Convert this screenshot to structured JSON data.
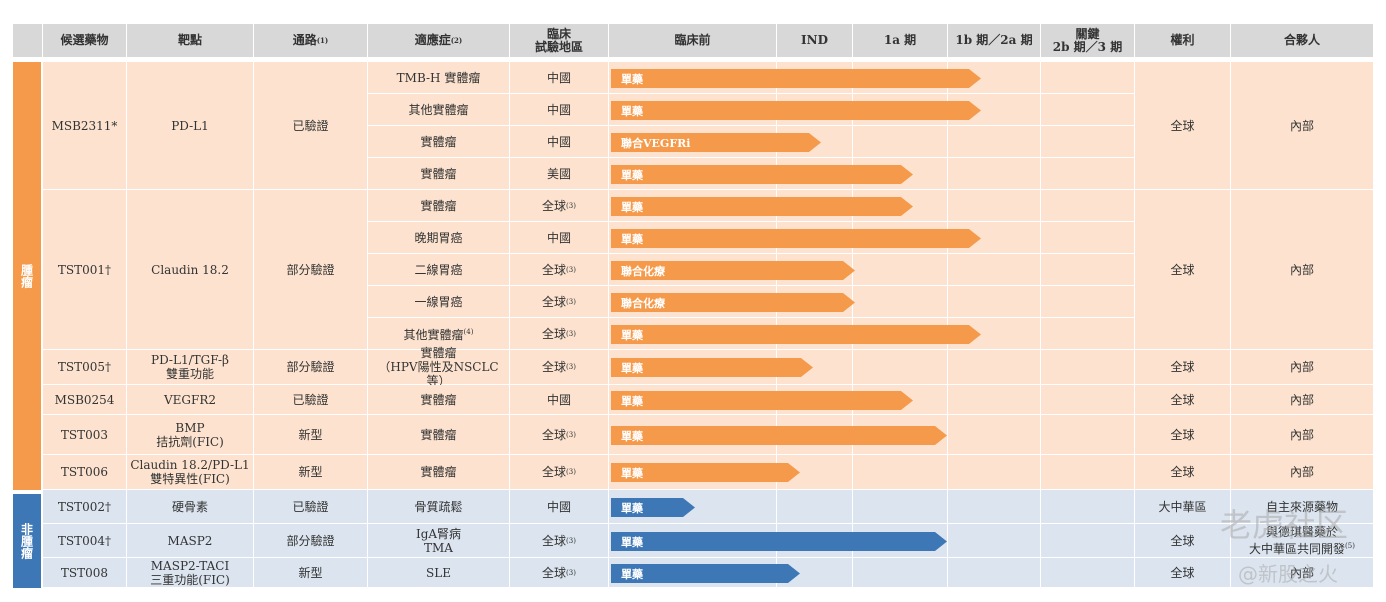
{
  "headers": {
    "candidate": "候選藥物",
    "target": "靶點",
    "pathway": "通路",
    "pathway_note": "(1)",
    "indication": "適應症",
    "indication_note": "(2)",
    "region_line1": "臨床",
    "region_line2": "試驗地區",
    "preclinical": "臨床前",
    "ind": "IND",
    "phase1a": "1a 期",
    "phase1b2a": "1b 期／2a 期",
    "pivotal_line1": "關鍵",
    "pivotal_line2": "2b 期／3 期",
    "rights": "權利",
    "partner": "合夥人"
  },
  "sidebar": {
    "oncology": "腫瘤",
    "non_oncology": "非腫瘤"
  },
  "groups": [
    {
      "candidate": "MSB2311*",
      "target": "PD-L1",
      "pathway": "已驗證",
      "rights": "全球",
      "partner": "內部"
    },
    {
      "candidate": "TST001†",
      "target": "Claudin 18.2",
      "pathway": "部分驗證",
      "rights": "全球",
      "partner": "內部"
    },
    {
      "candidate": "TST005†",
      "target_l1": "PD-L1/TGF-β",
      "target_l2": "雙重功能",
      "pathway": "部分驗證",
      "rights": "全球",
      "partner": "內部"
    },
    {
      "candidate": "MSB0254",
      "target": "VEGFR2",
      "pathway": "已驗證",
      "rights": "全球",
      "partner": "內部"
    },
    {
      "candidate": "TST003",
      "target_l1": "BMP",
      "target_l2": "拮抗劑(FIC)",
      "pathway": "新型",
      "rights": "全球",
      "partner": "內部"
    },
    {
      "candidate": "TST006",
      "target_l1": "Claudin 18.2/PD-L1",
      "target_l2": "雙特異性(FIC)",
      "pathway": "新型",
      "rights": "全球",
      "partner": "內部"
    },
    {
      "candidate": "TST002†",
      "target": "硬骨素",
      "pathway": "已驗證",
      "rights": "大中華區",
      "partner": "自主來源藥物"
    },
    {
      "candidate": "TST004†",
      "target": "MASP2",
      "pathway": "部分驗證",
      "rights": "全球",
      "partner_l1": "與德琪醫藥於",
      "partner_l2": "大中華區共同開發",
      "partner_note": "(5)"
    },
    {
      "candidate": "TST008",
      "target_l1": "MASP2-TACI",
      "target_l2": "三重功能(FIC)",
      "pathway": "新型",
      "rights": "全球",
      "partner": "內部"
    }
  ],
  "rows": [
    {
      "indication": "TMB-H 實體瘤",
      "region": "中國",
      "note": "",
      "bar": "單藥",
      "stage": 0.88
    },
    {
      "indication": "其他實體瘤",
      "region": "中國",
      "note": "",
      "bar": "單藥",
      "stage": 0.88
    },
    {
      "indication": "實體瘤",
      "region": "中國",
      "note": "",
      "bar": "聯合VEGFRi",
      "stage": 0.5
    },
    {
      "indication": "實體瘤",
      "region": "美國",
      "note": "",
      "bar": "單藥",
      "stage": 0.72
    },
    {
      "indication": "實體瘤",
      "region": "全球",
      "note": "(3)",
      "bar": "單藥",
      "stage": 0.72
    },
    {
      "indication": "晚期胃癌",
      "region": "中國",
      "note": "",
      "bar": "單藥",
      "stage": 0.88
    },
    {
      "indication": "二線胃癌",
      "region": "全球",
      "note": "(3)",
      "bar": "聯合化療",
      "stage": 0.58
    },
    {
      "indication": "一線胃癌",
      "region": "全球",
      "note": "(3)",
      "bar": "聯合化療",
      "stage": 0.58
    },
    {
      "indication": "其他實體瘤",
      "indication_note": "(4)",
      "region": "全球",
      "note": "(3)",
      "bar": "單藥",
      "stage": 0.88
    },
    {
      "indication_l1": "實體瘤",
      "indication_l2": "（HPV陽性及NSCLC 等）",
      "region": "全球",
      "note": "(3)",
      "bar": "單藥",
      "stage": 0.48
    },
    {
      "indication": "實體瘤",
      "region": "中國",
      "note": "",
      "bar": "單藥",
      "stage": 0.72
    },
    {
      "indication": "實體瘤",
      "region": "全球",
      "note": "(3)",
      "bar": "單藥",
      "stage": 0.8
    },
    {
      "indication": "實體瘤",
      "region": "全球",
      "note": "(3)",
      "bar": "單藥",
      "stage": 0.45
    },
    {
      "indication": "骨質疏鬆",
      "region": "中國",
      "note": "",
      "bar": "單藥",
      "stage": 0.2
    },
    {
      "indication_l1": "IgA腎病",
      "indication_l2": "TMA",
      "region": "全球",
      "note": "(3)",
      "bar": "單藥",
      "stage": 0.8
    },
    {
      "indication": "SLE",
      "region": "全球",
      "note": "(3)",
      "bar": "單藥",
      "stage": 0.45
    }
  ],
  "watermark": {
    "line1": "老虎社区",
    "line2": "@新股之火"
  },
  "colors": {
    "oncology_sidebar": "#f59a4a",
    "non_oncology_sidebar": "#3e77b6",
    "oncology_row": "#fde3cf",
    "non_oncology_row": "#dbe4ef",
    "header": "#d8d8d8"
  }
}
